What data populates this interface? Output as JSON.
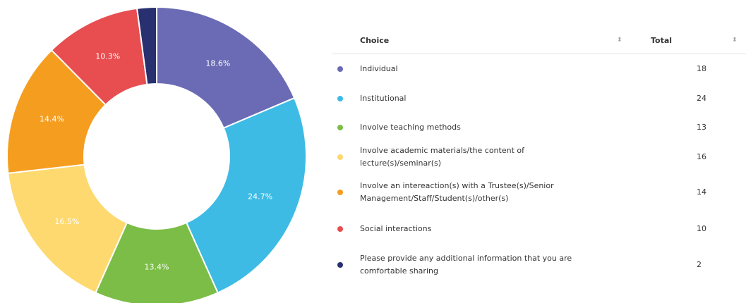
{
  "chart_data": {
    "type": "donut",
    "values": [
      18.6,
      24.7,
      13.4,
      16.5,
      14.4,
      10.3,
      2.1
    ],
    "value_labels": [
      "18.6%",
      "24.7%",
      "13.4%",
      "16.5%",
      "14.4%",
      "10.3%",
      null
    ],
    "colors": [
      "#6a6bb4",
      "#3dbbe4",
      "#7bbd46",
      "#fdd96f",
      "#f59d1f",
      "#e84d50",
      "#283070"
    ]
  },
  "table": {
    "headers": [
      "Choice",
      "Total"
    ],
    "rows": [
      [
        "Individual",
        18
      ],
      [
        "Institutional",
        24
      ],
      [
        "Involve teaching methods",
        13
      ],
      [
        "Involve academic materials/the content of lecture(s)/seminar(s)",
        16
      ],
      [
        "Involve an intereaction(s) with a Trustee(s)/Senior Management/Staff/Student(s)/other(s)",
        14
      ],
      [
        "Social interactions",
        10
      ],
      [
        "Please provide any additional information that you are comfortable sharing",
        2
      ]
    ]
  }
}
